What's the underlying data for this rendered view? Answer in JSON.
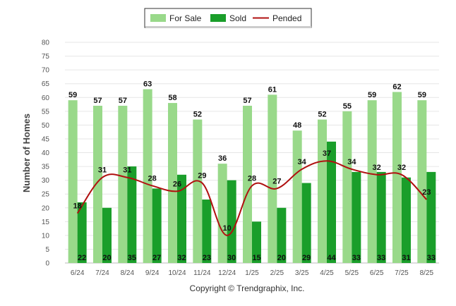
{
  "chart_data": {
    "type": "bar",
    "ylabel": "Number of Homes",
    "ylim": [
      0,
      80
    ],
    "yticks": [
      0,
      5,
      10,
      15,
      20,
      25,
      30,
      35,
      40,
      45,
      50,
      55,
      60,
      65,
      70,
      75,
      80
    ],
    "categories": [
      "6/24",
      "7/24",
      "8/24",
      "9/24",
      "10/24",
      "11/24",
      "12/24",
      "1/25",
      "2/25",
      "3/25",
      "4/25",
      "5/25",
      "6/25",
      "7/25",
      "8/25"
    ],
    "series": [
      {
        "name": "For Sale",
        "kind": "bar",
        "color": "#99d98a",
        "values": [
          59,
          57,
          57,
          63,
          58,
          52,
          36,
          57,
          61,
          48,
          52,
          55,
          59,
          62,
          59
        ]
      },
      {
        "name": "Sold",
        "kind": "bar",
        "color": "#1a9e2a",
        "values": [
          22,
          20,
          35,
          27,
          32,
          23,
          30,
          15,
          20,
          29,
          44,
          33,
          33,
          31,
          33
        ]
      },
      {
        "name": "Pended",
        "kind": "line",
        "color": "#b01010",
        "values": [
          18,
          31,
          31,
          28,
          26,
          29,
          10,
          28,
          27,
          34,
          37,
          34,
          32,
          32,
          23
        ]
      }
    ],
    "legend_position": "top-center",
    "grid": true
  },
  "footer": {
    "copyright": "Copyright © Trendgraphix, Inc."
  }
}
